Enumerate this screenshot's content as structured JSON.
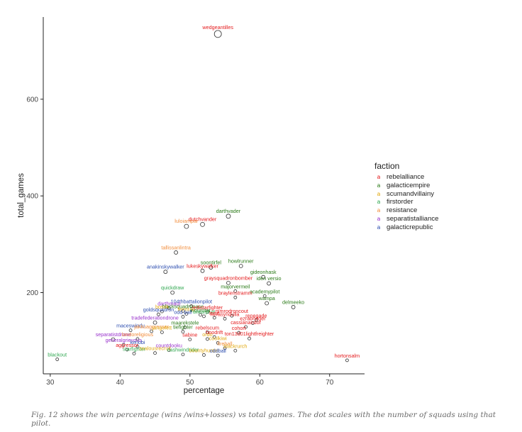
{
  "chart_data": {
    "type": "scatter",
    "title": "",
    "xlabel": "percentage",
    "ylabel": "total_games",
    "xlim": [
      29,
      75
    ],
    "ylim": [
      32,
      770
    ],
    "xticks": [
      30,
      40,
      50,
      60,
      70
    ],
    "yticks": [
      200,
      400,
      600
    ],
    "grid": false,
    "legend": {
      "title": "faction",
      "position": "right",
      "entries": [
        {
          "name": "rebelalliance",
          "color": "#e41a1c"
        },
        {
          "name": "galacticempire",
          "color": "#2a7a17"
        },
        {
          "name": "scumandvillainy",
          "color": "#e1a80e"
        },
        {
          "name": "firstorder",
          "color": "#32a852"
        },
        {
          "name": "resistance",
          "color": "#f28d3c"
        },
        {
          "name": "separatistalliance",
          "color": "#9932cc"
        },
        {
          "name": "galacticrepublic",
          "color": "#2e4fb0"
        }
      ]
    },
    "points": [
      {
        "label": "wedgeantilles",
        "x": 54.0,
        "y": 735,
        "size": 5,
        "faction": "rebelalliance"
      },
      {
        "label": "darthvader",
        "x": 55.5,
        "y": 358,
        "size": 3,
        "faction": "galacticempire"
      },
      {
        "label": "dutchvander",
        "x": 51.8,
        "y": 341,
        "size": 3,
        "faction": "rebelalliance"
      },
      {
        "label": "luloiampar",
        "x": 49.5,
        "y": 337,
        "size": 3,
        "faction": "resistance"
      },
      {
        "label": "tallissanlintra",
        "x": 48.0,
        "y": 283,
        "size": 2.5,
        "faction": "resistance"
      },
      {
        "label": "howlrunner",
        "x": 57.3,
        "y": 255,
        "size": 2.5,
        "faction": "galacticempire"
      },
      {
        "label": "soontirfel",
        "x": 53.0,
        "y": 252,
        "size": 2.5,
        "faction": "galacticempire"
      },
      {
        "label": "lukeskywalker",
        "x": 51.8,
        "y": 245,
        "size": 2.5,
        "faction": "rebelalliance"
      },
      {
        "label": "anakinskywalker",
        "x": 46.5,
        "y": 243,
        "size": 2.5,
        "faction": "galacticrepublic"
      },
      {
        "label": "gideonhask",
        "x": 60.5,
        "y": 232,
        "size": 2.5,
        "faction": "galacticempire"
      },
      {
        "label": "graysquadronbomber",
        "x": 55.5,
        "y": 220,
        "size": 2.5,
        "faction": "rebelalliance"
      },
      {
        "label": "iden versio",
        "x": 61.3,
        "y": 219,
        "size": 2.5,
        "faction": "galacticempire"
      },
      {
        "label": "quickdraw",
        "x": 47.5,
        "y": 200,
        "size": 2.5,
        "faction": "firstorder"
      },
      {
        "label": "majorvermeil",
        "x": 56.5,
        "y": 203,
        "size": 2,
        "faction": "galacticempire"
      },
      {
        "label": "academypilot",
        "x": 60.7,
        "y": 193,
        "size": 2,
        "faction": "galacticempire"
      },
      {
        "label": "braylenstramm",
        "x": 56.5,
        "y": 190,
        "size": 2,
        "faction": "rebelalliance"
      },
      {
        "label": "wampa",
        "x": 61.0,
        "y": 178,
        "size": 2.5,
        "faction": "galacticempire"
      },
      {
        "label": "delmeeko",
        "x": 64.8,
        "y": 170,
        "size": 2.5,
        "faction": "galacticempire"
      },
      {
        "label": "104thbattalionpilot",
        "x": 50.2,
        "y": 172,
        "size": 2,
        "faction": "galacticrepublic"
      },
      {
        "label": "darthmaul",
        "x": 47.0,
        "y": 168,
        "size": 2,
        "faction": "separatistalliance"
      },
      {
        "label": "blacksquadronace",
        "x": 49.0,
        "y": 162,
        "size": 2,
        "faction": "galacticempire"
      },
      {
        "label": "bossk",
        "x": 46.0,
        "y": 161,
        "size": 2,
        "faction": "scumandvillainy"
      },
      {
        "label": "jedistarfighter",
        "x": 52.5,
        "y": 160,
        "size": 2,
        "faction": "rebelalliance"
      },
      {
        "label": "goldsquadron",
        "x": 45.5,
        "y": 155,
        "size": 2,
        "faction": "galacticrepublic"
      },
      {
        "label": "fennrau",
        "x": 49.5,
        "y": 156,
        "size": 2,
        "faction": "scumandvillainy"
      },
      {
        "label": "inquisitor",
        "x": 51.5,
        "y": 154,
        "size": 2,
        "faction": "galacticempire"
      },
      {
        "label": "odd ball",
        "x": 49.0,
        "y": 150,
        "size": 2,
        "faction": "galacticrepublic"
      },
      {
        "label": "unkarplutt",
        "x": 52.0,
        "y": 151,
        "size": 2,
        "faction": "firstorder"
      },
      {
        "label": "nimrodroncout",
        "x": 56.0,
        "y": 152,
        "size": 2,
        "faction": "rebelalliance"
      },
      {
        "label": "lorrir",
        "x": 53.5,
        "y": 148,
        "size": 2,
        "faction": "rebelalliance"
      },
      {
        "label": "herasyndulla",
        "x": 55.0,
        "y": 146,
        "size": 2,
        "faction": "rebelalliance"
      },
      {
        "label": "renegade",
        "x": 59.5,
        "y": 143,
        "size": 2,
        "faction": "rebelalliance"
      },
      {
        "label": "tradefederationdrone",
        "x": 45.0,
        "y": 138,
        "size": 2.5,
        "faction": "separatistalliance"
      },
      {
        "label": "ezrabridger",
        "x": 59.0,
        "y": 137,
        "size": 2,
        "faction": "rebelalliance"
      },
      {
        "label": "maarekstele",
        "x": 49.3,
        "y": 128,
        "size": 2,
        "faction": "galacticempire"
      },
      {
        "label": "cassianandor",
        "x": 58.0,
        "y": 129,
        "size": 2,
        "faction": "rebelalliance"
      },
      {
        "label": "maceswindu",
        "x": 41.5,
        "y": 122,
        "size": 2,
        "faction": "galacticrepublic"
      },
      {
        "label": "jakkuaggressor",
        "x": 44.5,
        "y": 120,
        "size": 2,
        "faction": "resistance"
      },
      {
        "label": "jangofett",
        "x": 46.0,
        "y": 118,
        "size": 2,
        "faction": "scumandvillainy"
      },
      {
        "label": "tiefighter",
        "x": 49.0,
        "y": 119,
        "size": 2,
        "faction": "galacticempire"
      },
      {
        "label": "rebelscum",
        "x": 52.5,
        "y": 118,
        "size": 2,
        "faction": "rebelalliance"
      },
      {
        "label": "cohort",
        "x": 57.0,
        "y": 117,
        "size": 2,
        "faction": "rebelalliance"
      },
      {
        "label": "separatistdrone",
        "x": 39.0,
        "y": 103,
        "size": 2.5,
        "faction": "separatistalliance"
      },
      {
        "label": "landoreligious",
        "x": 42.5,
        "y": 104,
        "size": 2,
        "faction": "resistance"
      },
      {
        "label": "sabine",
        "x": 50.0,
        "y": 103,
        "size": 2,
        "faction": "rebelalliance"
      },
      {
        "label": "ordo",
        "x": 52.5,
        "y": 104,
        "size": 2,
        "faction": "scumandvillainy"
      },
      {
        "label": "hoodrift",
        "x": 53.5,
        "y": 108,
        "size": 2,
        "faction": "rebelalliance"
      },
      {
        "label": "ton13d01lightfreighter",
        "x": 58.5,
        "y": 105,
        "size": 2,
        "faction": "rebelalliance"
      },
      {
        "label": "coolkiwi",
        "x": 54.0,
        "y": 96,
        "size": 2,
        "faction": "scumandvillainy"
      },
      {
        "label": "generalgrievous",
        "x": 40.5,
        "y": 92,
        "size": 2,
        "faction": "separatistalliance"
      },
      {
        "label": "kenobi",
        "x": 42.5,
        "y": 88,
        "size": 2,
        "faction": "galacticrepublic"
      },
      {
        "label": "aggressor",
        "x": 41.0,
        "y": 82,
        "size": 2,
        "faction": "rebelalliance"
      },
      {
        "label": "countdooku",
        "x": 47.0,
        "y": 81,
        "size": 2,
        "faction": "separatistalliance"
      },
      {
        "label": "fireball",
        "x": 55.0,
        "y": 85,
        "size": 2,
        "faction": "resistance"
      },
      {
        "label": "blackrurch",
        "x": 56.5,
        "y": 80,
        "size": 2,
        "faction": "scumandvillainy"
      },
      {
        "label": "starfighter",
        "x": 42.0,
        "y": 74,
        "size": 2,
        "faction": "firstorder"
      },
      {
        "label": "zealousrecruit",
        "x": 45.0,
        "y": 75,
        "size": 2,
        "faction": "scumandvillainy"
      },
      {
        "label": "nashwindrider",
        "x": 49.0,
        "y": 72,
        "size": 2,
        "faction": "firstorder"
      },
      {
        "label": "bountyhunter",
        "x": 52.0,
        "y": 71,
        "size": 2,
        "faction": "scumandvillainy"
      },
      {
        "label": "oddball",
        "x": 54.0,
        "y": 70,
        "size": 2,
        "faction": "galacticrepublic"
      },
      {
        "label": "blackout",
        "x": 31.0,
        "y": 62,
        "size": 2,
        "faction": "firstorder"
      },
      {
        "label": "hortonsalm",
        "x": 72.5,
        "y": 60,
        "size": 2,
        "faction": "rebelalliance"
      }
    ]
  },
  "caption": "Fig. 12 shows the win percentage (wins /wins+losses) vs total games. The dot scales with the number of squads using that pilot."
}
